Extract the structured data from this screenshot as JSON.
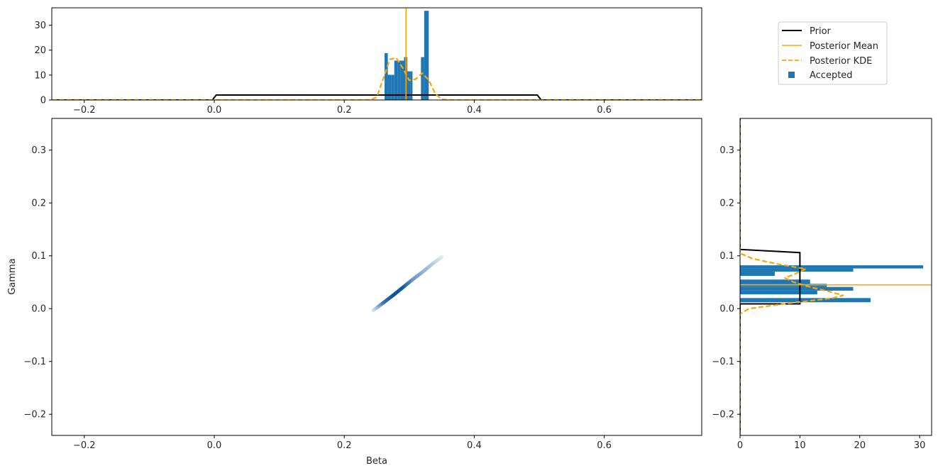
{
  "colors": {
    "prior": "#000000",
    "posterior": "#ffa500",
    "accepted": "#1f77b4",
    "density_dark": "#08519c"
  },
  "legend": {
    "placement": "top-right",
    "entries": [
      {
        "label": "Prior",
        "style": "solid-line",
        "color": "#000000"
      },
      {
        "label": "Posterior Mean",
        "style": "solid-line",
        "color": "#ffa500"
      },
      {
        "label": "Posterior KDE",
        "style": "dashed-line",
        "color": "#ffa500"
      },
      {
        "label": "Accepted",
        "style": "square-marker",
        "color": "#1f77b4"
      }
    ]
  },
  "chart_data": [
    {
      "id": "beta-marginal",
      "type": "bar",
      "xlim": [
        -0.25,
        0.75
      ],
      "ylim": [
        0,
        37
      ],
      "xticks": [
        -0.2,
        0.0,
        0.2,
        0.4,
        0.6
      ],
      "yticks": [
        0,
        10,
        20,
        30
      ],
      "xtick_labels": [
        "−0.2",
        "0.0",
        "0.2",
        "0.4",
        "0.6"
      ],
      "ytick_labels": [
        "0",
        "10",
        "20",
        "30"
      ],
      "hist": {
        "name": "Accepted",
        "bins": [
          {
            "x0": 0.262,
            "x1": 0.267,
            "value": 18.8
          },
          {
            "x0": 0.267,
            "x1": 0.272,
            "value": 10.1
          },
          {
            "x0": 0.272,
            "x1": 0.277,
            "value": 10.1
          },
          {
            "x0": 0.277,
            "x1": 0.282,
            "value": 15.8
          },
          {
            "x0": 0.282,
            "x1": 0.287,
            "value": 15.8
          },
          {
            "x0": 0.287,
            "x1": 0.292,
            "value": 15.8
          },
          {
            "x0": 0.292,
            "x1": 0.297,
            "value": 17.2
          },
          {
            "x0": 0.297,
            "x1": 0.302,
            "value": 11.5
          },
          {
            "x0": 0.302,
            "x1": 0.305,
            "value": 11.5
          },
          {
            "x0": 0.318,
            "x1": 0.323,
            "value": 17.2
          },
          {
            "x0": 0.323,
            "x1": 0.33,
            "value": 35.8
          }
        ]
      },
      "prior": {
        "name": "Prior",
        "x": [
          -0.25,
          -0.003,
          0.003,
          0.497,
          0.503,
          0.75
        ],
        "y": [
          0,
          0,
          2.0,
          2.0,
          0,
          0
        ]
      },
      "posterior_kde": {
        "name": "Posterior KDE",
        "x": [
          -0.25,
          0.24,
          0.25,
          0.26,
          0.27,
          0.28,
          0.29,
          0.3,
          0.31,
          0.32,
          0.33,
          0.34,
          0.35,
          0.36,
          0.75
        ],
        "y": [
          0,
          0,
          1.2,
          8.5,
          16.3,
          16.9,
          12.8,
          7.9,
          8.4,
          10.8,
          8.0,
          2.5,
          0.3,
          0,
          0
        ]
      },
      "posterior_mean": {
        "name": "Posterior Mean",
        "value": 0.295
      }
    },
    {
      "id": "joint",
      "type": "heatmap",
      "xlabel": "Beta",
      "ylabel": "Gamma",
      "xlim": [
        -0.25,
        0.75
      ],
      "ylim": [
        -0.24,
        0.36
      ],
      "xticks": [
        -0.2,
        0.0,
        0.2,
        0.4,
        0.6
      ],
      "yticks": [
        -0.2,
        -0.1,
        0.0,
        0.1,
        0.2,
        0.3
      ],
      "xtick_labels": [
        "−0.2",
        "0.0",
        "0.2",
        "0.4",
        "0.6"
      ],
      "ytick_labels": [
        "−0.2",
        "−0.1",
        "0.0",
        "0.1",
        "0.2",
        "0.3"
      ],
      "density_ridge": {
        "x": [
          0.245,
          0.26,
          0.275,
          0.29,
          0.305,
          0.32,
          0.335,
          0.35
        ],
        "y": [
          -0.003,
          0.011,
          0.025,
          0.04,
          0.055,
          0.069,
          0.084,
          0.098
        ],
        "intensity": [
          0.2,
          0.8,
          1.0,
          0.95,
          0.6,
          0.45,
          0.3,
          0.12
        ]
      }
    },
    {
      "id": "gamma-marginal",
      "type": "bar",
      "orientation": "horizontal",
      "xlim": [
        0,
        32
      ],
      "ylim": [
        -0.24,
        0.36
      ],
      "xticks": [
        0,
        10,
        20,
        30
      ],
      "yticks": [
        -0.2,
        -0.1,
        0.0,
        0.1,
        0.2,
        0.3
      ],
      "xtick_labels": [
        "0",
        "10",
        "20",
        "30"
      ],
      "ytick_labels": [
        "−0.2",
        "−0.1",
        "0.0",
        "0.1",
        "0.2",
        "0.3"
      ],
      "hist": {
        "name": "Accepted",
        "bins": [
          {
            "y0": 0.012,
            "y1": 0.02,
            "value": 21.8
          },
          {
            "y0": 0.027,
            "y1": 0.034,
            "value": 12.9
          },
          {
            "y0": 0.034,
            "y1": 0.041,
            "value": 18.9
          },
          {
            "y0": 0.041,
            "y1": 0.047,
            "value": 14.5
          },
          {
            "y0": 0.047,
            "y1": 0.055,
            "value": 11.7
          },
          {
            "y0": 0.062,
            "y1": 0.07,
            "value": 5.8
          },
          {
            "y0": 0.07,
            "y1": 0.076,
            "value": 18.9
          },
          {
            "y0": 0.076,
            "y1": 0.082,
            "value": 30.6
          }
        ]
      },
      "prior": {
        "name": "Prior",
        "y": [
          -0.24,
          0.009,
          0.009,
          0.106,
          0.112,
          0.36
        ],
        "x": [
          0,
          0,
          10.0,
          10.0,
          0,
          0
        ]
      },
      "posterior_kde": {
        "name": "Posterior KDE",
        "y": [
          -0.24,
          -0.01,
          0.0,
          0.01,
          0.02,
          0.025,
          0.032,
          0.04,
          0.05,
          0.058,
          0.065,
          0.075,
          0.085,
          0.095,
          0.105,
          0.36
        ],
        "x": [
          0,
          0,
          1.5,
          8.0,
          15.5,
          17.2,
          15.0,
          12.0,
          9.0,
          7.5,
          9.0,
          11.0,
          6.0,
          2.0,
          0,
          0
        ]
      },
      "posterior_mean": {
        "name": "Posterior Mean",
        "value": 0.045
      }
    }
  ]
}
